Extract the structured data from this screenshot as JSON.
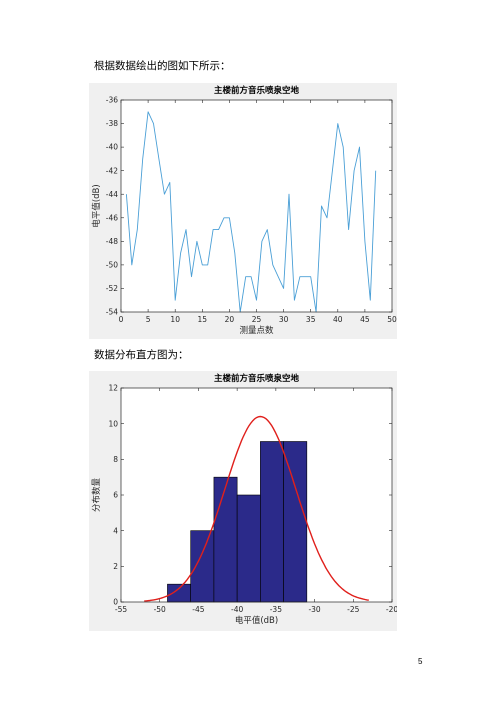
{
  "captions": {
    "first": "根据数据绘出的图如下所示：",
    "second": "数据分布直方图为："
  },
  "page_number": "5",
  "colors": {
    "line": "#4a9fd6",
    "bar_fill": "#2b2a8a",
    "fit_curve": "#e0201c",
    "figure_bg": "#f0f0f0"
  },
  "chart_data": [
    {
      "type": "line",
      "title": "主楼前方音乐喷泉空地",
      "xlabel": "测量点数",
      "ylabel": "电平值(dB)",
      "xlim": [
        0,
        50
      ],
      "ylim": [
        -54,
        -36
      ],
      "xticks": [
        0,
        5,
        10,
        15,
        20,
        25,
        30,
        35,
        40,
        45,
        50
      ],
      "yticks": [
        -54,
        -52,
        -50,
        -48,
        -46,
        -44,
        -42,
        -40,
        -38,
        -36
      ],
      "grid": false,
      "series": [
        {
          "x": [
            1,
            2,
            3,
            4,
            5,
            6,
            7,
            8,
            9,
            10,
            11,
            12,
            13,
            14,
            15,
            16,
            17,
            18,
            19,
            20,
            21,
            22,
            23,
            24,
            25,
            26,
            27,
            28,
            29,
            30,
            31,
            32,
            33,
            34,
            35,
            36,
            37,
            38,
            39,
            40,
            41,
            42,
            43,
            44,
            45,
            46,
            47
          ],
          "values": [
            -44,
            -50,
            -47,
            -41,
            -37,
            -38,
            -41,
            -44,
            -43,
            -53,
            -49,
            -47,
            -51,
            -48,
            -50,
            -50,
            -47,
            -47,
            -46,
            -46,
            -49,
            -54,
            -51,
            -51,
            -53,
            -48,
            -47,
            -50,
            -51,
            -52,
            -44,
            -53,
            -51,
            -51,
            -51,
            -54,
            -45,
            -46,
            -42,
            -38,
            -40,
            -47,
            -42,
            -40,
            -48,
            -53,
            -42
          ]
        }
      ]
    },
    {
      "type": "bar",
      "title": "主楼前方音乐喷泉空地",
      "xlabel": "电平值(dB)",
      "ylabel": "分布数量",
      "xlim": [
        -55,
        -20
      ],
      "ylim": [
        0,
        12
      ],
      "xticks": [
        -55,
        -50,
        -45,
        -40,
        -35,
        -30,
        -25,
        -20
      ],
      "yticks": [
        0,
        2,
        4,
        6,
        8,
        10,
        12
      ],
      "bins": [
        {
          "from": -49,
          "to": -46,
          "count": 1
        },
        {
          "from": -46,
          "to": -43,
          "count": 4
        },
        {
          "from": -43,
          "to": -40,
          "count": 7
        },
        {
          "from": -40,
          "to": -37,
          "count": 6
        },
        {
          "from": -37,
          "to": -34,
          "count": 9
        },
        {
          "from": -34,
          "to": -31,
          "count": 9
        }
      ],
      "fit_curve": {
        "type": "normal",
        "mean": -37,
        "peak": 10.4,
        "sigma": 4.6,
        "range": [
          -52,
          -23
        ]
      }
    }
  ]
}
